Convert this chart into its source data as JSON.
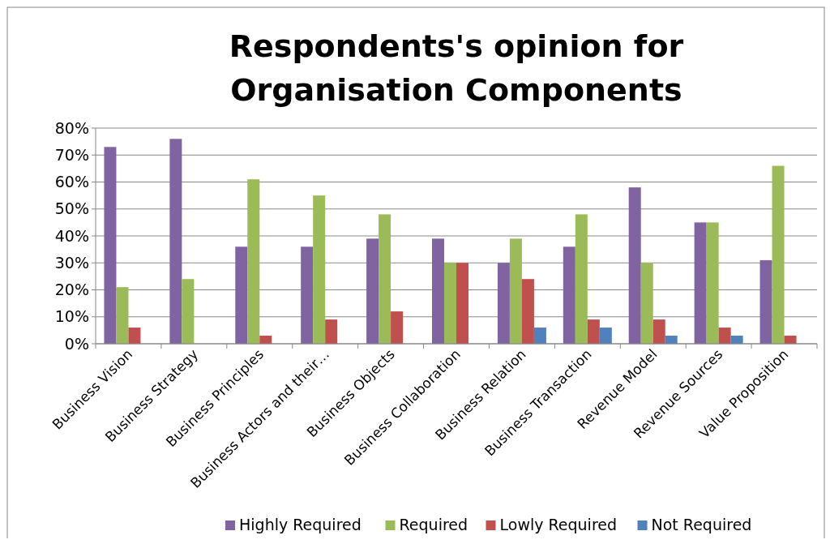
{
  "chart_data": {
    "type": "bar",
    "title": "Respondents's opinion  for\nOrganisation Components",
    "categories": [
      "Business Vision",
      "Business Strategy",
      "Business Principles",
      "Business Actors and their…",
      "Business Objects",
      "Business Collaboration",
      "Business Relation",
      "Business Transaction",
      "Revenue Model",
      "Revenue Sources",
      "Value Proposition"
    ],
    "series": [
      {
        "name": "Highly Required",
        "color": "#8064a2",
        "values": [
          73,
          76,
          36,
          36,
          39,
          39,
          30,
          36,
          58,
          45,
          31
        ]
      },
      {
        "name": "Required",
        "color": "#9bbb59",
        "values": [
          21,
          24,
          61,
          55,
          48,
          30,
          39,
          48,
          30,
          45,
          66
        ]
      },
      {
        "name": "Lowly Required",
        "color": "#c0504d",
        "values": [
          6,
          0,
          3,
          9,
          12,
          30,
          24,
          9,
          9,
          6,
          3
        ]
      },
      {
        "name": "Not Required",
        "color": "#4f81bd",
        "values": [
          0,
          0,
          0,
          0,
          0,
          0,
          6,
          6,
          3,
          3,
          0
        ]
      }
    ],
    "ylim": [
      0,
      80
    ],
    "yticks": [
      {
        "value": 0,
        "label": "0%"
      },
      {
        "value": 10,
        "label": "10%"
      },
      {
        "value": 20,
        "label": "20%"
      },
      {
        "value": 30,
        "label": "30%"
      },
      {
        "value": 40,
        "label": "40%"
      },
      {
        "value": 50,
        "label": "50%"
      },
      {
        "value": 60,
        "label": "60%"
      },
      {
        "value": 70,
        "label": "70%"
      },
      {
        "value": 80,
        "label": "80%"
      }
    ],
    "grid": "y",
    "legend": "bottom"
  }
}
